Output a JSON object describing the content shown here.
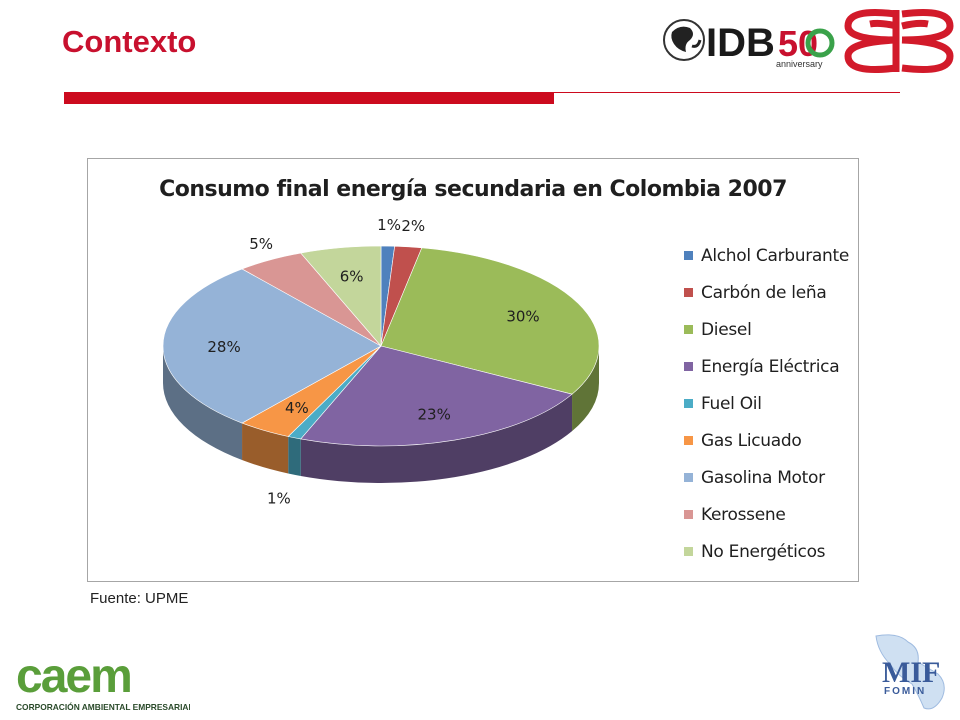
{
  "slide": {
    "title": "Contexto",
    "source": "Fuente: UPME"
  },
  "logos": {
    "idb_text": "IDB",
    "idb_fifty": "50",
    "idb_sub": "anniversary",
    "caem_text": "caem",
    "caem_sub": "CORPORACIÓN AMBIENTAL EMPRESARIAL",
    "mif_text": "MIF",
    "mif_sub": "FOMIN"
  },
  "colors": {
    "accent_red": "#cc0a1e"
  },
  "chart_data": {
    "type": "pie",
    "title": "Consumo final energía secundaria en Colombia 2007",
    "legend_position": "right",
    "series": [
      {
        "name": "Alchol Carburante",
        "value": 1,
        "label": "1%",
        "color": "#4f81bd"
      },
      {
        "name": "Carbón de leña",
        "value": 2,
        "label": "2%",
        "color": "#c0504d"
      },
      {
        "name": "Diesel",
        "value": 30,
        "label": "30%",
        "color": "#9bbb59"
      },
      {
        "name": "Energía Eléctrica",
        "value": 23,
        "label": "23%",
        "color": "#8064a2"
      },
      {
        "name": "Fuel Oil",
        "value": 1,
        "label": "1%",
        "color": "#4bacc6"
      },
      {
        "name": "Gas Licuado",
        "value": 4,
        "label": "4%",
        "color": "#f79646"
      },
      {
        "name": "Gasolina Motor",
        "value": 28,
        "label": "28%",
        "color": "#95b3d7"
      },
      {
        "name": "Kerossene",
        "value": 5,
        "label": "5%",
        "color": "#d99694"
      },
      {
        "name": "No Energéticos",
        "value": 6,
        "label": "6%",
        "color": "#c3d69b"
      }
    ]
  }
}
